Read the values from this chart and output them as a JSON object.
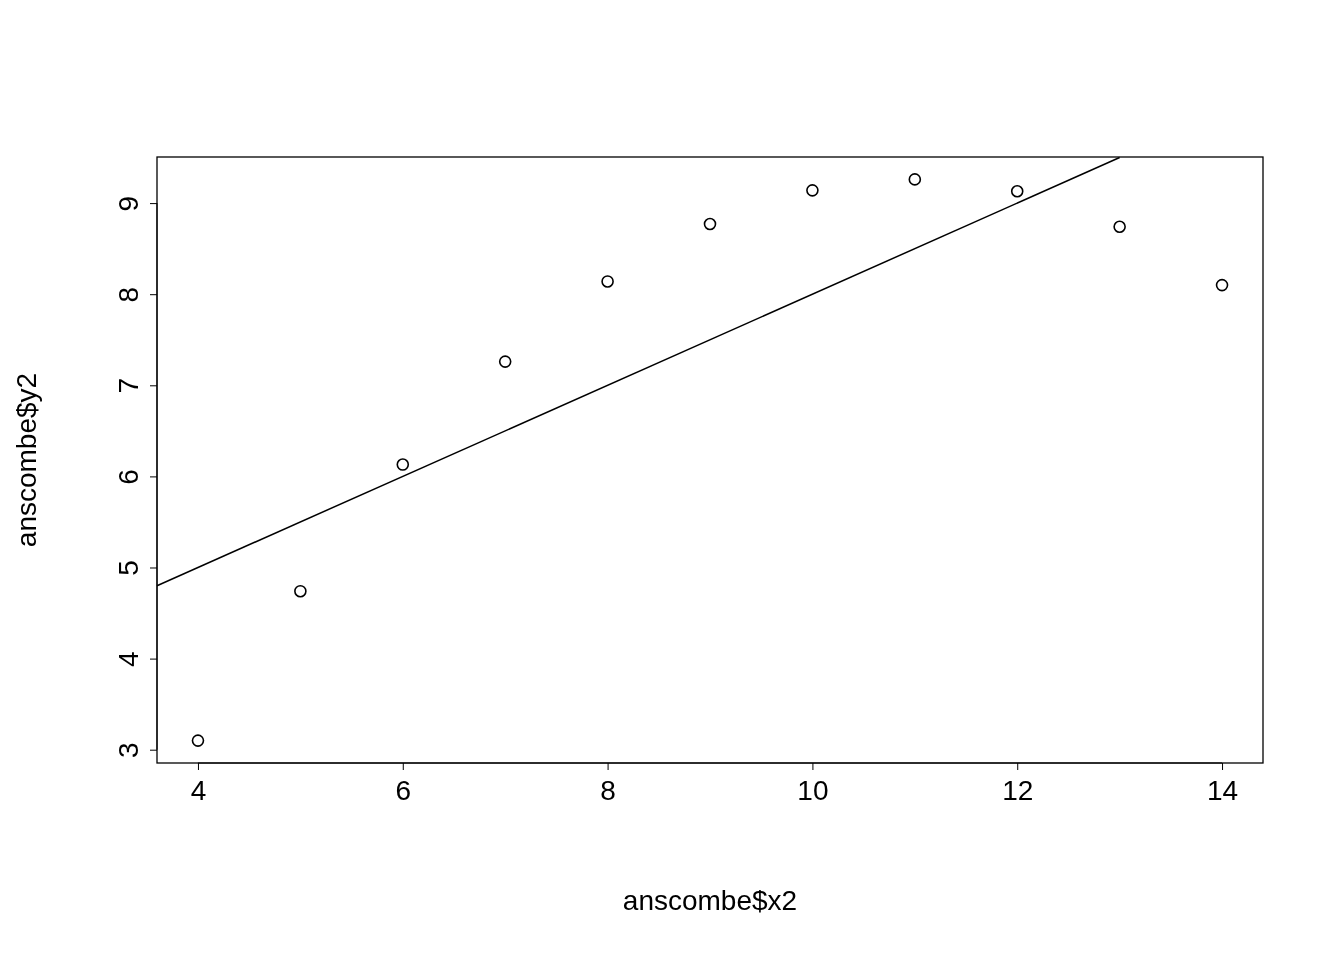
{
  "chart_data": {
    "type": "scatter",
    "xlabel": "anscombe$x2",
    "ylabel": "anscombe$y2",
    "xlim": [
      3.6,
      14.4
    ],
    "ylim": [
      2.854,
      9.506
    ],
    "xticks": [
      4,
      6,
      8,
      10,
      12,
      14
    ],
    "yticks": [
      3,
      4,
      5,
      6,
      7,
      8,
      9
    ],
    "series": [
      {
        "color": "#000000",
        "marker": "circle",
        "x": [
          10,
          8,
          13,
          9,
          11,
          14,
          6,
          4,
          12,
          7,
          5
        ],
        "values": [
          9.14,
          8.14,
          8.74,
          8.77,
          9.26,
          8.1,
          6.13,
          3.1,
          9.13,
          7.26,
          4.74
        ]
      },
      {
        "type": "line",
        "color": "#000000",
        "x": [
          3.6,
          13
        ],
        "values": [
          4.8,
          9.5
        ]
      }
    ]
  }
}
